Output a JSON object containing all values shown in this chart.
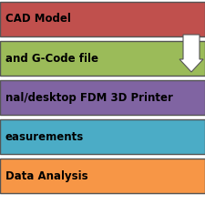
{
  "bars": [
    {
      "label": "CAD Model",
      "color": "#C0504D"
    },
    {
      "label": "and G-Code file",
      "color": "#9BBB59"
    },
    {
      "label": "nal/desktop FDM 3D Printer",
      "color": "#8064A2"
    },
    {
      "label": "easurements",
      "color": "#4BACC6"
    },
    {
      "label": "Data Analysis",
      "color": "#F79646"
    }
  ],
  "background_color": "#ffffff",
  "text_color": "#000000",
  "font_size": 8.5,
  "arrow_color": "#ffffff",
  "border_color": "#555555",
  "bar_edge_lw": 1.0
}
